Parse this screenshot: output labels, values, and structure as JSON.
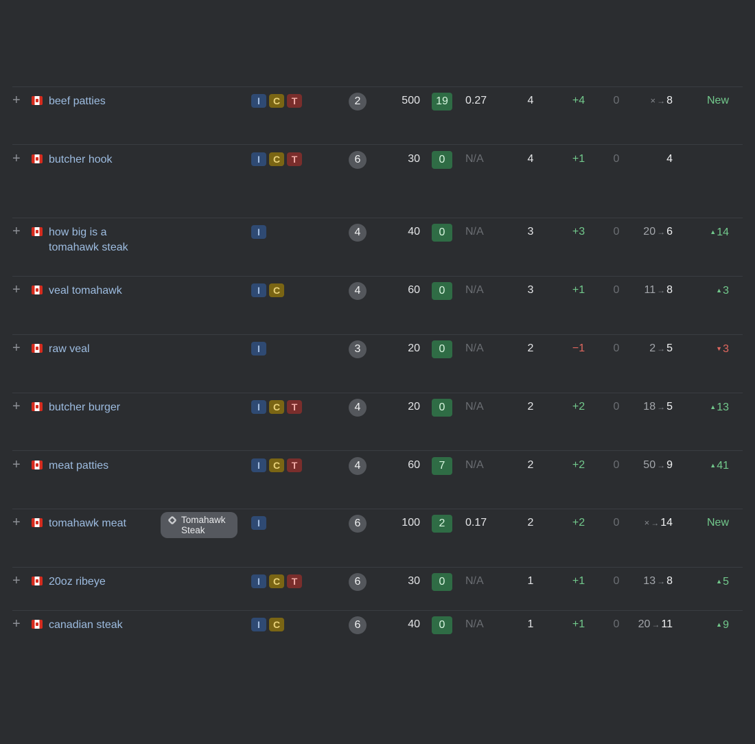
{
  "rows": [
    {
      "keyword": "beef patties",
      "flag": "canada-flag-icon",
      "intents": [
        "I",
        "C",
        "T"
      ],
      "kd": "2",
      "volume": "500",
      "score": "19",
      "cpc": "0.27",
      "position": "4",
      "change": "+4",
      "change_dir": "up",
      "zero": "0",
      "move_from": "×",
      "move_to": "8",
      "trend": "New",
      "trend_dir": "new"
    },
    {
      "keyword": "butcher hook",
      "flag": "canada-flag-icon",
      "intents": [
        "I",
        "C",
        "T"
      ],
      "kd": "6",
      "volume": "30",
      "score": "0",
      "cpc": "N/A",
      "position": "4",
      "change": "+1",
      "change_dir": "up",
      "zero": "0",
      "move_from": "",
      "move_to": "4",
      "trend": "",
      "trend_dir": "none"
    },
    {
      "keyword": "how big is a tomahawk steak",
      "flag": "canada-flag-icon",
      "intents": [
        "I"
      ],
      "kd": "4",
      "volume": "40",
      "score": "0",
      "cpc": "N/A",
      "position": "3",
      "change": "+3",
      "change_dir": "up",
      "zero": "0",
      "move_from": "20",
      "move_to": "6",
      "trend": "14",
      "trend_dir": "up"
    },
    {
      "keyword": "veal tomahawk",
      "flag": "canada-flag-icon",
      "intents": [
        "I",
        "C"
      ],
      "kd": "4",
      "volume": "60",
      "score": "0",
      "cpc": "N/A",
      "position": "3",
      "change": "+1",
      "change_dir": "up",
      "zero": "0",
      "move_from": "11",
      "move_to": "8",
      "trend": "3",
      "trend_dir": "up"
    },
    {
      "keyword": "raw veal",
      "flag": "canada-flag-icon",
      "intents": [
        "I"
      ],
      "kd": "3",
      "volume": "20",
      "score": "0",
      "cpc": "N/A",
      "position": "2",
      "change": "−1",
      "change_dir": "down",
      "zero": "0",
      "move_from": "2",
      "move_to": "5",
      "trend": "3",
      "trend_dir": "down"
    },
    {
      "keyword": "butcher burger",
      "flag": "canada-flag-icon",
      "intents": [
        "I",
        "C",
        "T"
      ],
      "kd": "4",
      "volume": "20",
      "score": "0",
      "cpc": "N/A",
      "position": "2",
      "change": "+2",
      "change_dir": "up",
      "zero": "0",
      "move_from": "18",
      "move_to": "5",
      "trend": "13",
      "trend_dir": "up"
    },
    {
      "keyword": "meat patties",
      "flag": "canada-flag-icon",
      "intents": [
        "I",
        "C",
        "T"
      ],
      "kd": "4",
      "volume": "60",
      "score": "7",
      "cpc": "N/A",
      "position": "2",
      "change": "+2",
      "change_dir": "up",
      "zero": "0",
      "move_from": "50",
      "move_to": "9",
      "trend": "41",
      "trend_dir": "up"
    },
    {
      "keyword": "tomahawk meat",
      "flag": "canada-flag-icon",
      "serp_feature": "Tomahawk Steak",
      "intents": [
        "I"
      ],
      "kd": "6",
      "volume": "100",
      "score": "2",
      "cpc": "0.17",
      "position": "2",
      "change": "+2",
      "change_dir": "up",
      "zero": "0",
      "move_from": "×",
      "move_to": "14",
      "trend": "New",
      "trend_dir": "new"
    },
    {
      "keyword": "20oz ribeye",
      "flag": "canada-flag-icon",
      "intents": [
        "I",
        "C",
        "T"
      ],
      "kd": "6",
      "volume": "30",
      "score": "0",
      "cpc": "N/A",
      "position": "1",
      "change": "+1",
      "change_dir": "up",
      "zero": "0",
      "move_from": "13",
      "move_to": "8",
      "trend": "5",
      "trend_dir": "up"
    },
    {
      "keyword": "canadian steak",
      "flag": "canada-flag-icon",
      "intents": [
        "I",
        "C"
      ],
      "kd": "6",
      "volume": "40",
      "score": "0",
      "cpc": "N/A",
      "position": "1",
      "change": "+1",
      "change_dir": "up",
      "zero": "0",
      "move_from": "20",
      "move_to": "11",
      "trend": "9",
      "trend_dir": "up"
    }
  ]
}
